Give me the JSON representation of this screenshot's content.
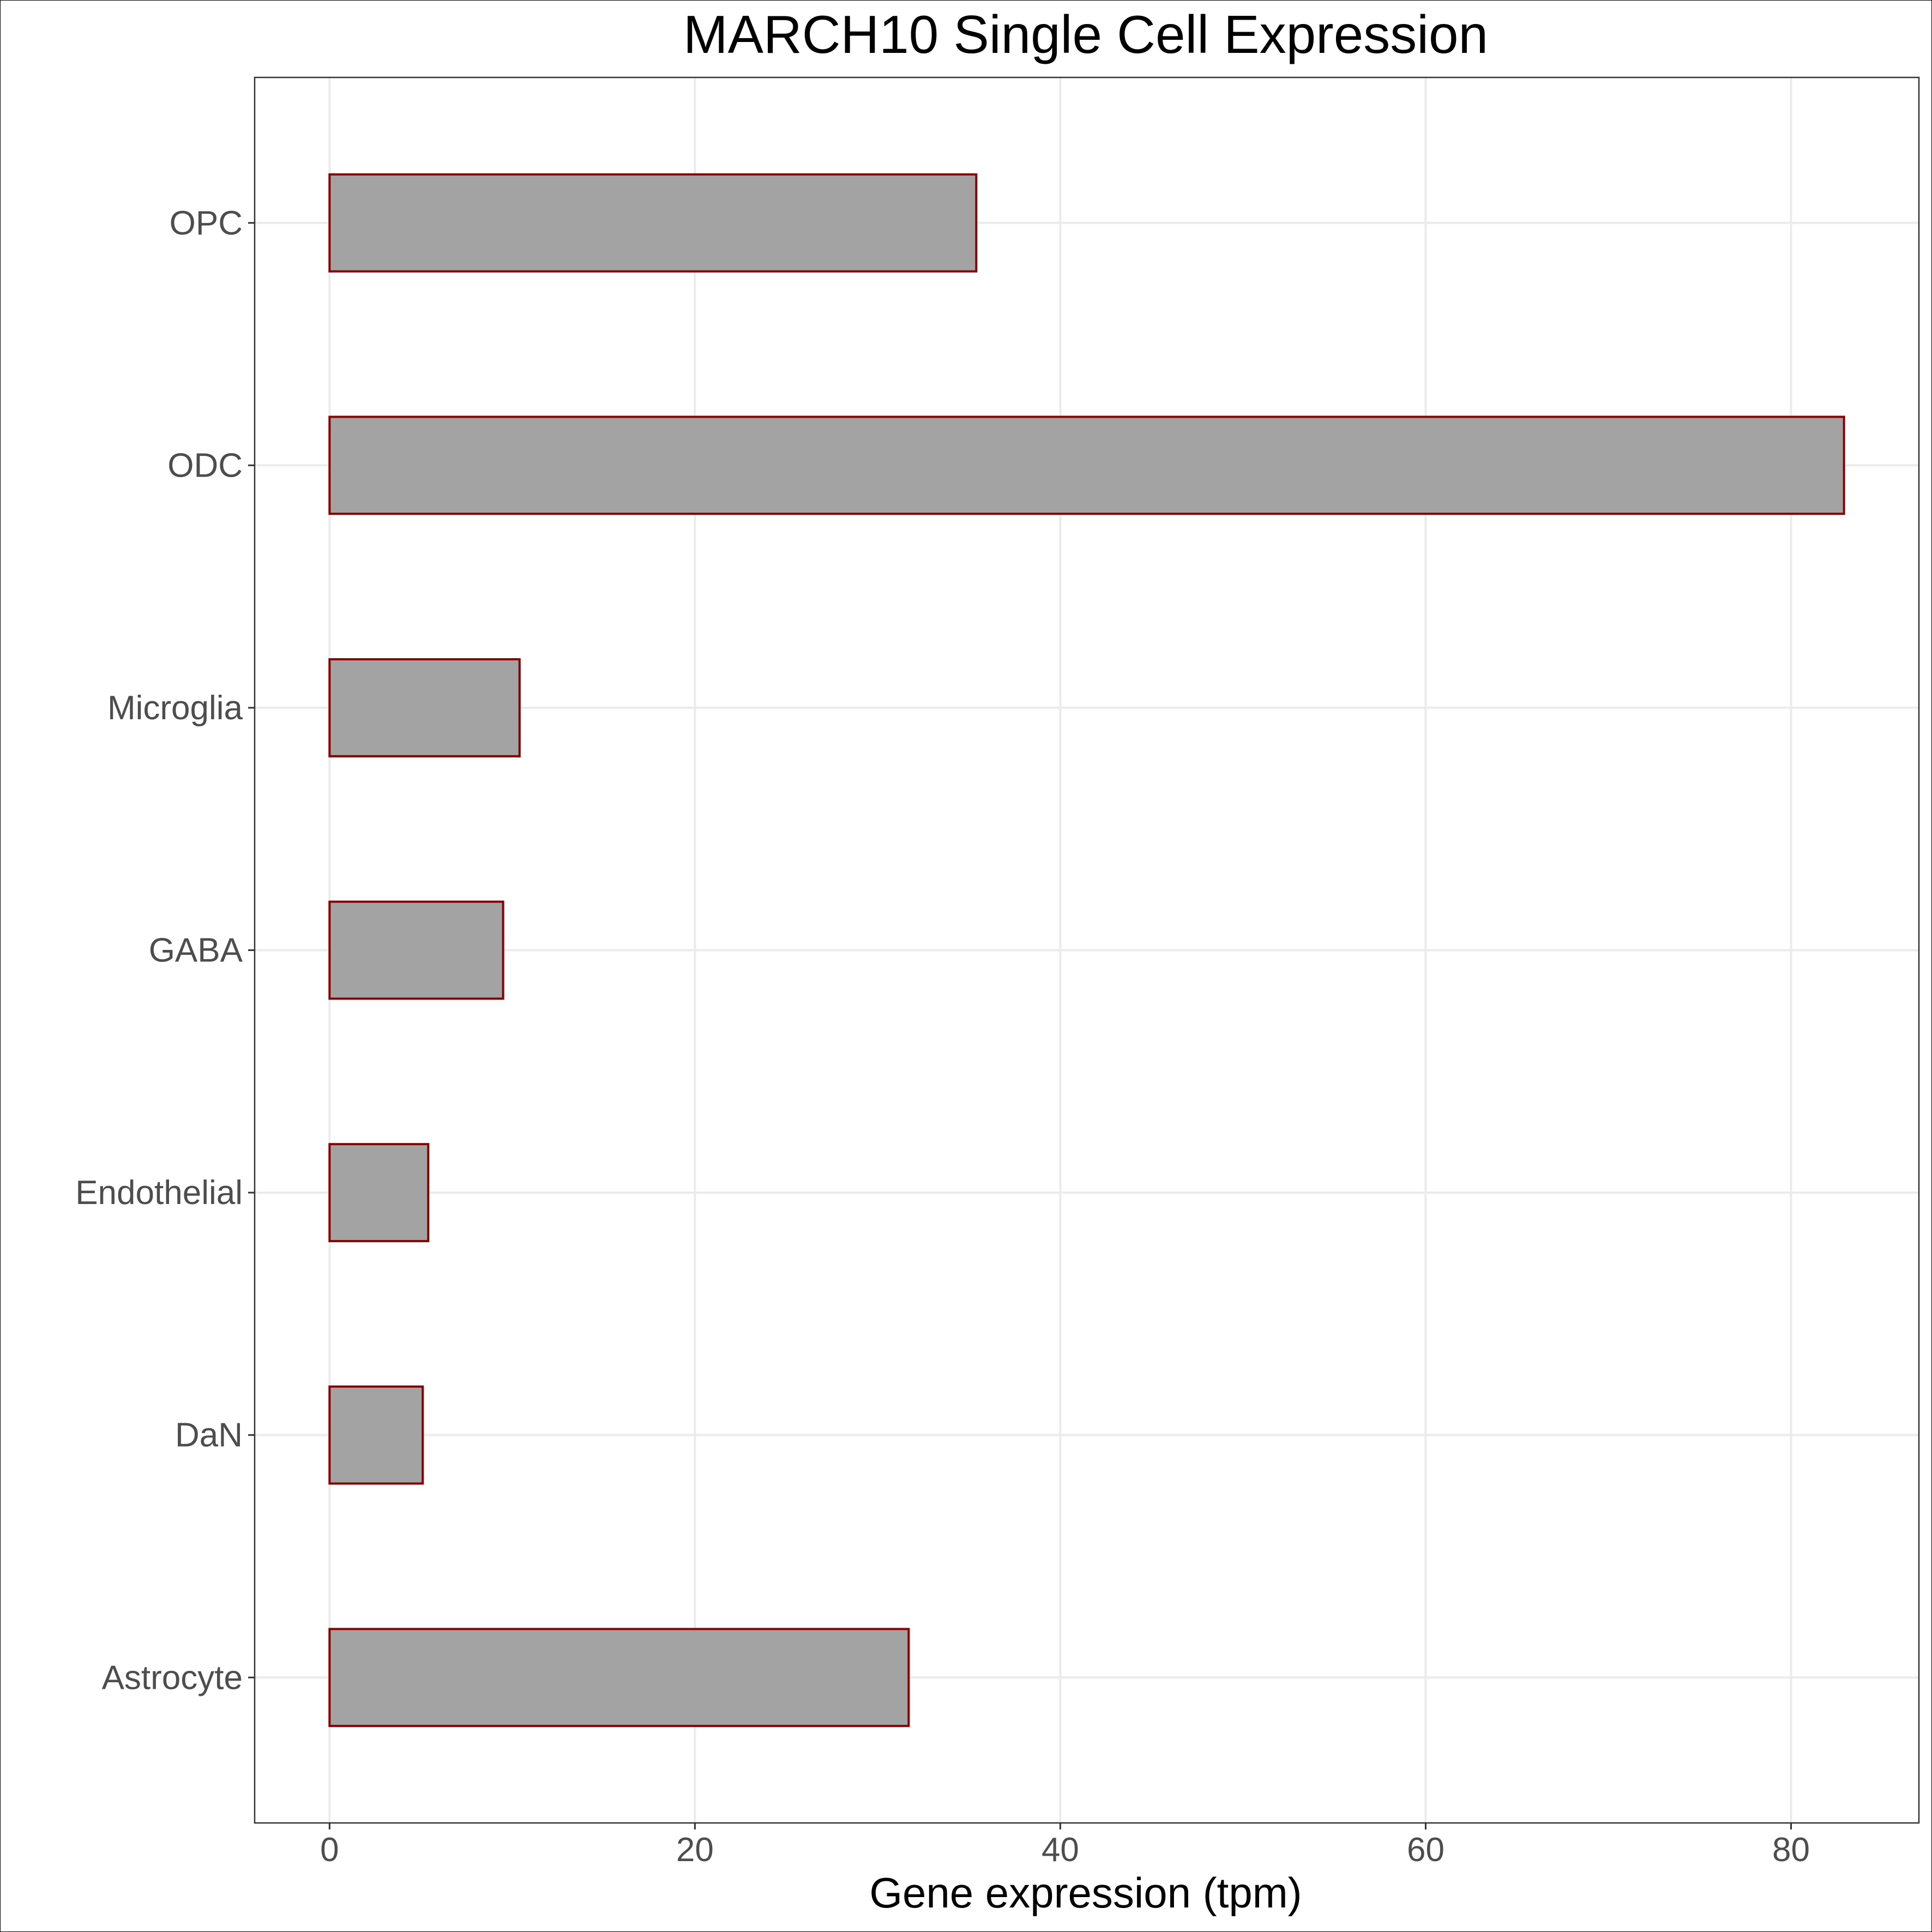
{
  "chart_data": {
    "type": "bar",
    "orientation": "horizontal",
    "title": "MARCH10 Single Cell Expression",
    "xlabel": "Gene expression (tpm)",
    "ylabel": "",
    "categories": [
      "Astrocyte",
      "DaN",
      "Endothelial",
      "GABA",
      "Microglia",
      "ODC",
      "OPC"
    ],
    "values": [
      31.7,
      5.1,
      5.4,
      9.5,
      10.4,
      82.9,
      35.4
    ],
    "xlim": [
      -4.1,
      87.0
    ],
    "xticks": [
      0,
      20,
      40,
      60,
      80
    ],
    "xtick_labels": [
      "0",
      "20",
      "40",
      "60",
      "80"
    ],
    "grid": true,
    "legend": "none",
    "colors": {
      "bar_fill": "#a3a3a3",
      "bar_outline": "#8b0000",
      "grid": "#ebebeb",
      "panel_border": "#333333",
      "tick_label": "#4d4d4d"
    }
  }
}
